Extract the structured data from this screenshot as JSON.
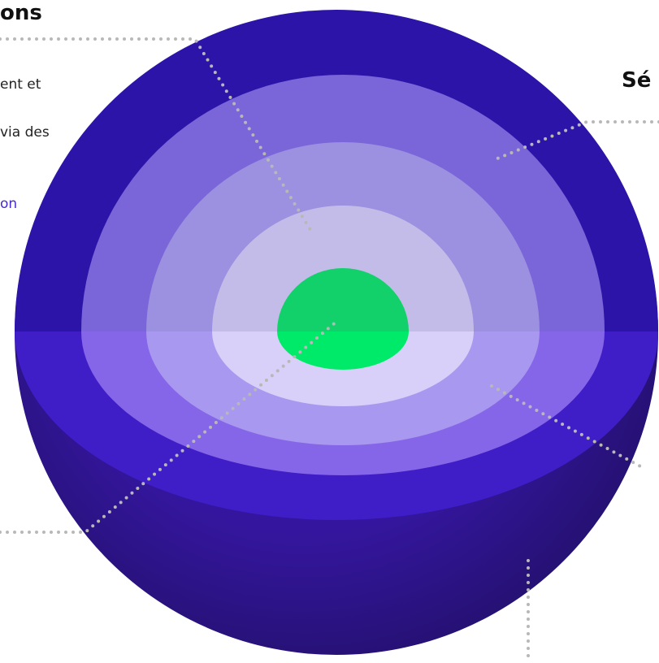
{
  "left_panel": {
    "title": "ons",
    "lines": [
      "ent et",
      "via des"
    ],
    "link": "on"
  },
  "right_panel": {
    "title": "Sé"
  }
}
